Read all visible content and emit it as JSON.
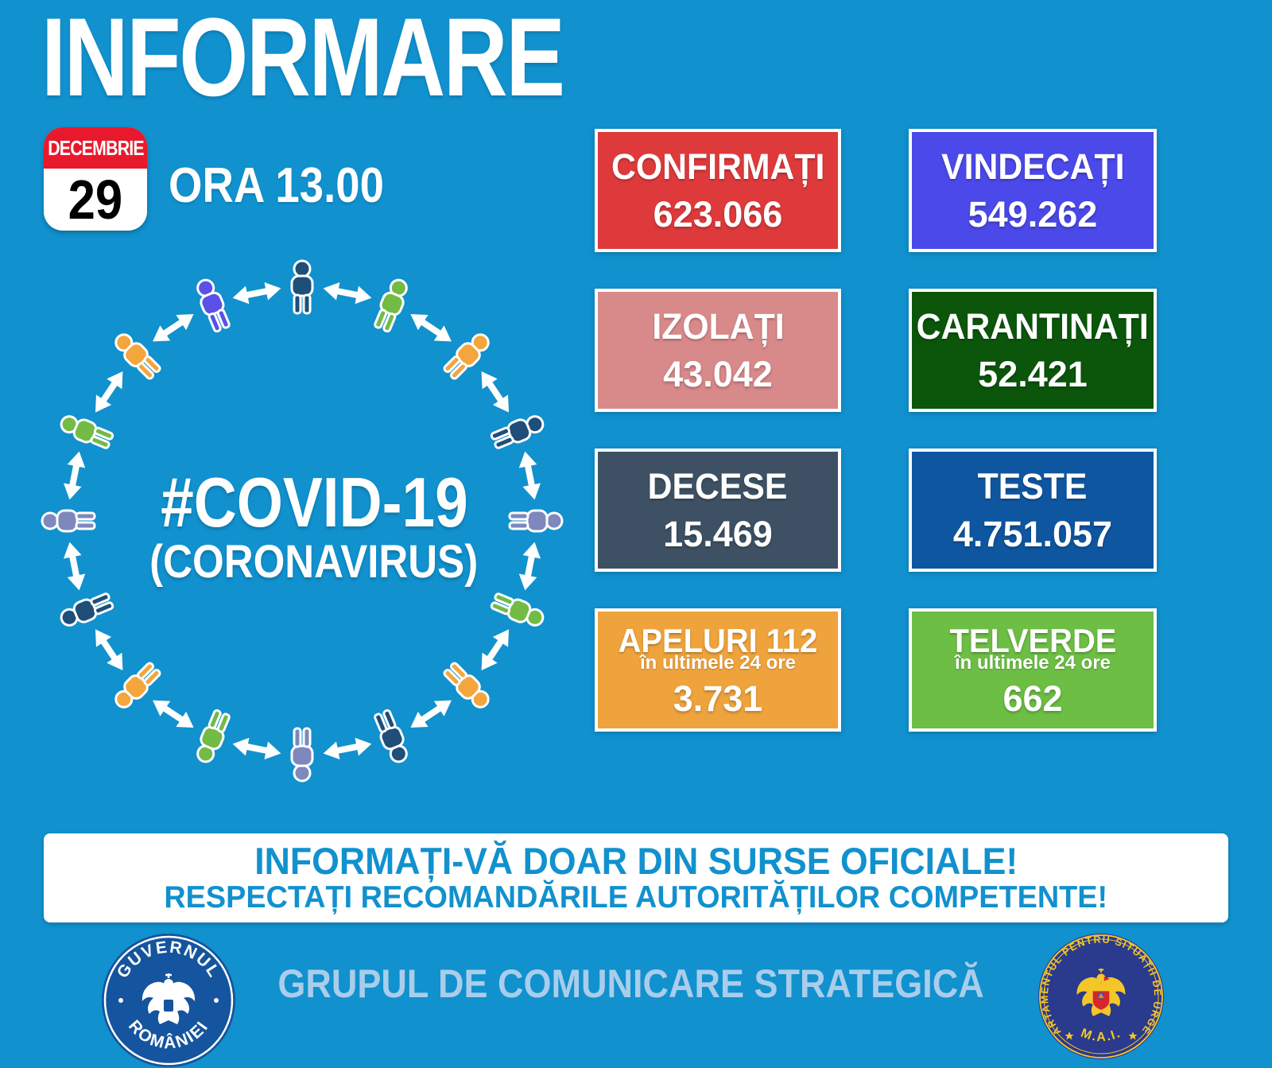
{
  "title": "INFORMARE",
  "date_badge": {
    "month": "DECEMBRIE",
    "day": "29"
  },
  "time_label": "ORA 13.00",
  "center_graphic": {
    "hashtag": "#COVID-19",
    "subtitle": "(CORONAVIRUS)"
  },
  "stats": {
    "boxes": [
      {
        "label": "CONFIRMAȚI",
        "value": "623.066",
        "color": "#DE3A3C"
      },
      {
        "label": "VINDECAȚI",
        "value": "549.262",
        "color": "#4B49E9"
      },
      {
        "label": "IZOLAȚI",
        "value": "43.042",
        "color": "#D8898A"
      },
      {
        "label": "CARANTINAȚI",
        "value": "52.421",
        "color": "#0B560B"
      },
      {
        "label": "DECESE",
        "value": "15.469",
        "color": "#3E5164"
      },
      {
        "label": "TESTE",
        "value": "4.751.057",
        "color": "#0F56A0"
      },
      {
        "label": "APELURI 112",
        "sublabel": "în ultimele 24 ore",
        "value": "3.731",
        "color": "#EFA33C"
      },
      {
        "label": "TELVERDE",
        "sublabel": "în ultimele 24 ore",
        "value": "662",
        "color": "#6CBE44"
      }
    ]
  },
  "banner": {
    "line1": "INFORMAȚI-VĂ DOAR DIN SURSE OFICIALE!",
    "line2": "RESPECTAȚI RECOMANDĂRILE AUTORITĂȚILOR COMPETENTE!"
  },
  "footer": {
    "gov_logo": {
      "top_text": "GUVERNUL",
      "bottom_text": "ROMÂNIEI"
    },
    "strategic_group": "GRUPUL DE COMUNICARE STRATEGICĂ",
    "dsu_logo": {
      "ring_text": "DEPARTAMENTUL PENTRU SITUAȚII DE URGENȚĂ",
      "bottom_text": "M.A.I."
    }
  },
  "people_circle": {
    "colors": [
      "#1F4E79",
      "#72BB44",
      "#F4A53C",
      "#1F4E79",
      "#7E88BD",
      "#72BB44",
      "#F4A53C",
      "#1F4E79",
      "#7E88BD",
      "#72BB44",
      "#F4A53C",
      "#1F4E79",
      "#7E88BD",
      "#72BB44",
      "#F4A53C",
      "#5B50E8"
    ]
  },
  "colors": {
    "background": "#1191CE",
    "banner_bg": "#FFFFFF",
    "banner_text": "#1191CE",
    "calendar_red": "#E8192C",
    "strategic_text": "#A9CDEA",
    "gov_seal_blue": "#15549E",
    "dsu_seal_navy": "#2A3A8C",
    "dsu_gold": "#F5C62A",
    "dsu_red": "#D8252B",
    "arrow_white": "#FFFFFF"
  }
}
